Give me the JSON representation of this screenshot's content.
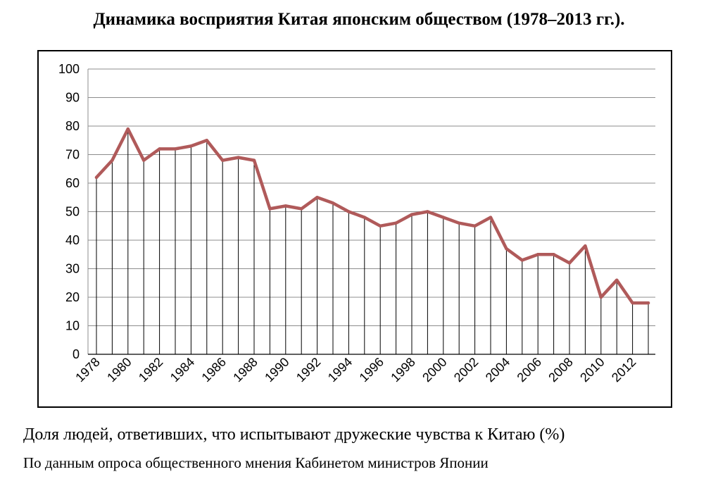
{
  "title": "Динамика восприятия Китая японским обществом (1978–2013 гг.).",
  "caption": "Доля людей, ответивших, что испытывают дружеские чувства к Китаю (%)",
  "source": "По данным опроса общественного мнения Кабинетом министров Японии",
  "chart_data": {
    "type": "line",
    "title": "",
    "xlabel": "",
    "ylabel": "",
    "ylim": [
      0,
      100
    ],
    "yticks": [
      0,
      10,
      20,
      30,
      40,
      50,
      60,
      70,
      80,
      90,
      100
    ],
    "xtick_labels": [
      "1978",
      "1980",
      "1982",
      "1984",
      "1986",
      "1988",
      "1990",
      "1992",
      "1994",
      "1996",
      "1998",
      "2000",
      "2002",
      "2004",
      "2006",
      "2008",
      "2010",
      "2012"
    ],
    "grid": "horizontal",
    "drop_lines": true,
    "line_color": "#b05a5a",
    "x": [
      1978,
      1979,
      1980,
      1981,
      1982,
      1983,
      1984,
      1985,
      1986,
      1987,
      1988,
      1989,
      1990,
      1991,
      1992,
      1993,
      1994,
      1995,
      1996,
      1997,
      1998,
      1999,
      2000,
      2001,
      2002,
      2003,
      2004,
      2005,
      2006,
      2007,
      2008,
      2009,
      2010,
      2011,
      2012,
      2013
    ],
    "values": [
      62,
      68,
      79,
      68,
      72,
      72,
      73,
      75,
      68,
      69,
      68,
      51,
      52,
      51,
      55,
      53,
      50,
      48,
      45,
      46,
      49,
      50,
      48,
      46,
      45,
      48,
      37,
      33,
      35,
      35,
      32,
      38,
      20,
      26,
      18,
      18
    ]
  }
}
